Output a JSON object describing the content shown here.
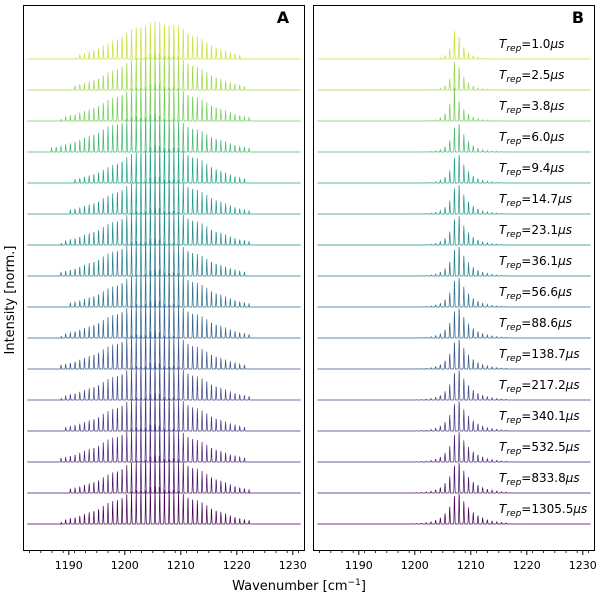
{
  "chart_data": {
    "type": "line",
    "xlabel": "Wavenumber [cm",
    "xlabel_sup": "−1",
    "xlabel_end": "]",
    "ylabel": "Intensity [norm.]",
    "xlim": [
      1182,
      1232
    ],
    "xticks": [
      "1190",
      "1200",
      "1210",
      "1220",
      "1230"
    ],
    "xtick_values": [
      1190,
      1200,
      1210,
      1220,
      1230
    ],
    "layout": "stacked-offset",
    "colormap": "viridis-reversed",
    "panels": [
      {
        "label": "A",
        "spectra_center": 1206,
        "spectra_width": 12,
        "series": [
          {
            "center": 1206.0,
            "width": 11.0
          },
          {
            "center": 1206.0,
            "width": 11.5
          },
          {
            "center": 1205.5,
            "width": 12.5
          },
          {
            "center": 1204.5,
            "width": 13.5
          },
          {
            "center": 1206.5,
            "width": 11.5
          },
          {
            "center": 1206.0,
            "width": 12.0
          },
          {
            "center": 1205.5,
            "width": 12.5
          },
          {
            "center": 1205.0,
            "width": 12.5
          },
          {
            "center": 1206.0,
            "width": 12.0
          },
          {
            "center": 1205.5,
            "width": 12.5
          },
          {
            "center": 1205.0,
            "width": 12.5
          },
          {
            "center": 1205.5,
            "width": 12.5
          },
          {
            "center": 1205.5,
            "width": 12.0
          },
          {
            "center": 1205.0,
            "width": 12.5
          },
          {
            "center": 1206.0,
            "width": 12.0
          },
          {
            "center": 1205.5,
            "width": 12.5
          }
        ]
      },
      {
        "label": "B",
        "series": [
          {
            "name": "1.0",
            "peak": 1207.3,
            "width": 2.0
          },
          {
            "name": "2.5",
            "peak": 1207.3,
            "width": 2.2
          },
          {
            "name": "3.8",
            "peak": 1207.0,
            "width": 2.4
          },
          {
            "name": "6.0",
            "peak": 1207.5,
            "width": 2.6
          },
          {
            "name": "9.4",
            "peak": 1207.5,
            "width": 2.8
          },
          {
            "name": "14.7",
            "peak": 1207.5,
            "width": 3.0
          },
          {
            "name": "23.1",
            "peak": 1207.5,
            "width": 3.0
          },
          {
            "name": "36.1",
            "peak": 1207.5,
            "width": 3.2
          },
          {
            "name": "56.6",
            "peak": 1207.5,
            "width": 3.2
          },
          {
            "name": "88.6",
            "peak": 1207.5,
            "width": 3.4
          },
          {
            "name": "138.7",
            "peak": 1207.5,
            "width": 3.4
          },
          {
            "name": "217.2",
            "peak": 1207.5,
            "width": 3.5
          },
          {
            "name": "340.1",
            "peak": 1207.5,
            "width": 3.6
          },
          {
            "name": "532.5",
            "peak": 1207.5,
            "width": 3.6
          },
          {
            "name": "833.8",
            "peak": 1207.5,
            "width": 3.8
          },
          {
            "name": "1305.5",
            "peak": 1207.5,
            "width": 4.0
          }
        ]
      }
    ],
    "trep_prefix": "T",
    "trep_sub": "rep",
    "trep_unit": "μs"
  }
}
